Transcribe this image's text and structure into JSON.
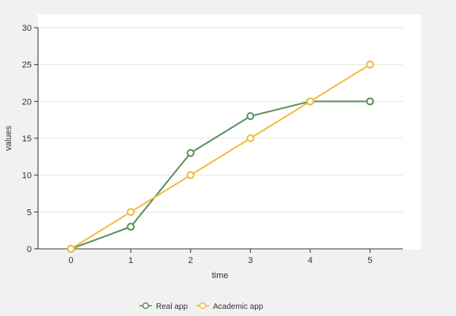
{
  "chart_data": {
    "type": "line",
    "title": "",
    "xlabel": "time",
    "ylabel": "values",
    "x": [
      0,
      1,
      2,
      3,
      4,
      5
    ],
    "xlim": [
      -0.55,
      5.55
    ],
    "ylim": [
      0,
      30
    ],
    "y_ticks": [
      0,
      5,
      10,
      15,
      20,
      25,
      30
    ],
    "grid": "horizontal",
    "legend_position": "bottom",
    "series": [
      {
        "name": "Real app",
        "color": "#5a8f5c",
        "values": [
          0,
          3,
          13,
          18,
          20,
          20
        ]
      },
      {
        "name": "Academic app",
        "color": "#f0bd3d",
        "values": [
          0,
          5,
          10,
          15,
          20,
          25
        ]
      }
    ]
  }
}
